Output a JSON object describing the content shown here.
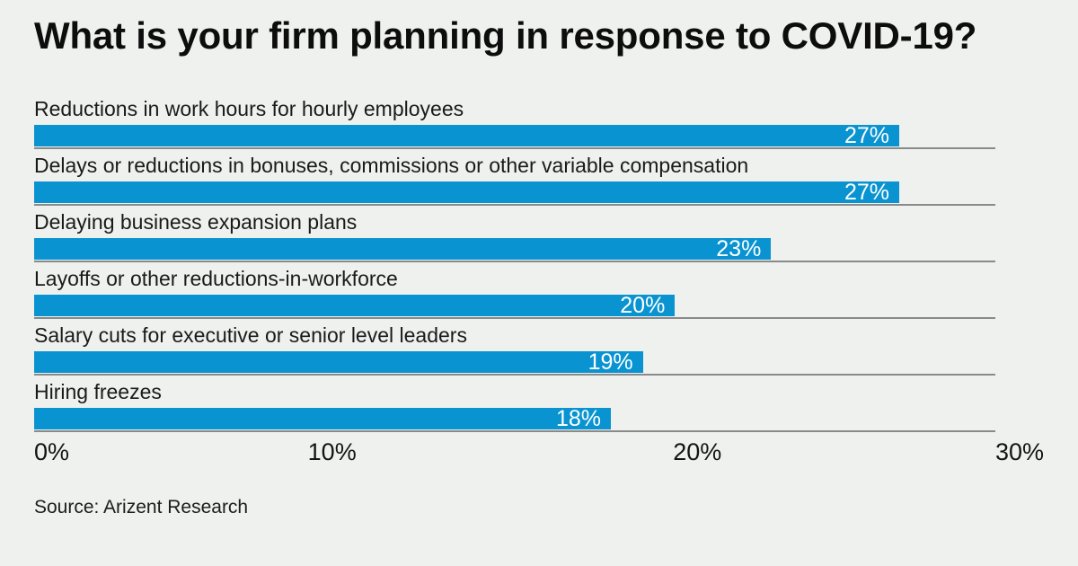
{
  "page": {
    "background_color": "#eff1ee",
    "title": "What is your firm planning in response to COVID-19?",
    "source": "Source: Arizent Research"
  },
  "chart_data": {
    "type": "bar",
    "orientation": "horizontal",
    "title": "What is your firm planning in response to COVID-19?",
    "categories": [
      "Reductions in work hours for hourly employees",
      "Delays or reductions in bonuses, commissions or other variable compensation",
      "Delaying business expansion plans",
      "Layoffs or other reductions-in-workforce",
      "Salary cuts for executive or senior level leaders",
      "Hiring freezes"
    ],
    "values": [
      27,
      27,
      23,
      20,
      19,
      18
    ],
    "value_labels": [
      "27%",
      "27%",
      "23%",
      "20%",
      "19%",
      "18%"
    ],
    "xlim": [
      0,
      30
    ],
    "x_ticks": [
      {
        "label": "0%",
        "value": 0
      },
      {
        "label": "10%",
        "value": 10
      },
      {
        "label": "20%",
        "value": 20
      },
      {
        "label": "30%",
        "value": 30
      }
    ],
    "bar_color": "#0994d1",
    "value_label_color": "#ffffff",
    "row_baseline_color": "#8a8a8a",
    "grid": "row-baselines-only",
    "legend": "none",
    "source": "Source: Arizent Research"
  }
}
